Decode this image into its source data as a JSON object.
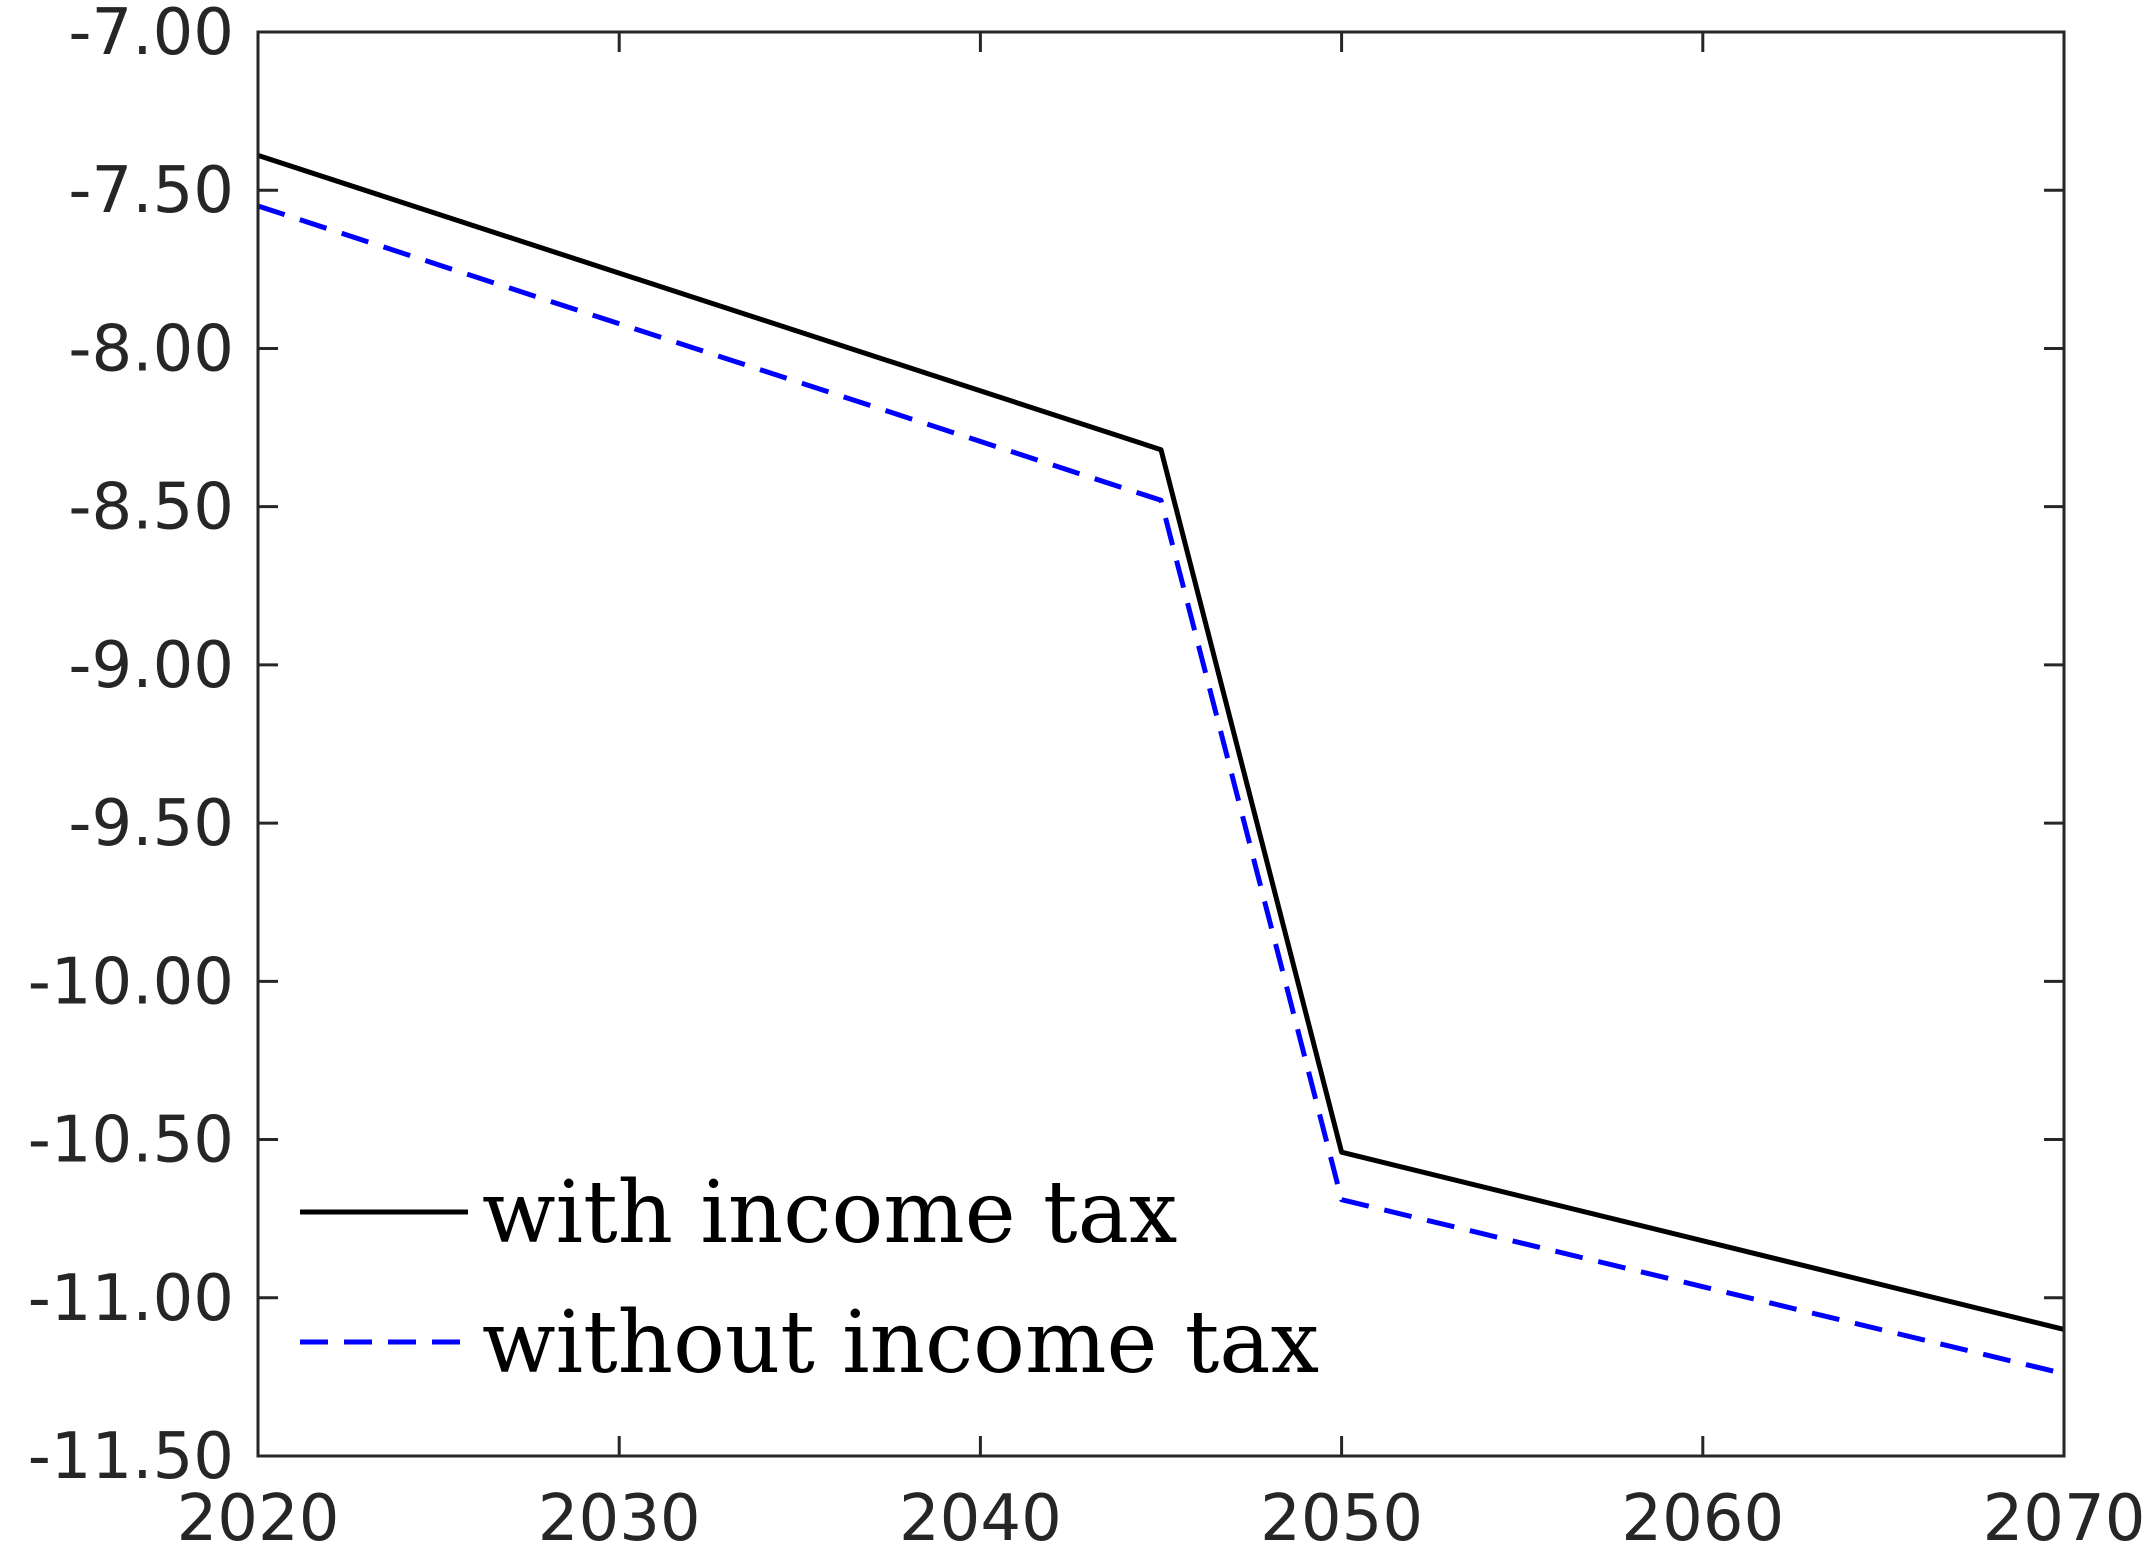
{
  "chart_data": {
    "type": "line",
    "title": "",
    "xlabel": "",
    "ylabel": "",
    "xlim": [
      2020,
      2070
    ],
    "ylim": [
      -11.5,
      -7.0
    ],
    "x_ticks": [
      2020,
      2030,
      2040,
      2050,
      2060,
      2070
    ],
    "x_tick_labels": [
      "2020",
      "2030",
      "2040",
      "2050",
      "2060",
      "2070"
    ],
    "y_ticks": [
      -7.0,
      -7.5,
      -8.0,
      -8.5,
      -9.0,
      -9.5,
      -10.0,
      -10.5,
      -11.0,
      -11.5
    ],
    "y_tick_labels": [
      "-7.00",
      "-7.50",
      "-8.00",
      "-8.50",
      "-9.00",
      "-9.50",
      "-10.00",
      "-10.50",
      "-11.00",
      "-11.50"
    ],
    "grid": false,
    "legend_position": "bottom-left",
    "series": [
      {
        "name": "with income tax",
        "color": "#000000",
        "line_style": "solid",
        "x": [
          2020,
          2045,
          2050,
          2070
        ],
        "y": [
          -7.39,
          -8.32,
          -10.54,
          -11.1
        ]
      },
      {
        "name": "without income tax",
        "color": "#0000ff",
        "line_style": "dashed",
        "x": [
          2020,
          2045,
          2050,
          2070
        ],
        "y": [
          -7.55,
          -8.48,
          -10.69,
          -11.24
        ]
      }
    ]
  }
}
